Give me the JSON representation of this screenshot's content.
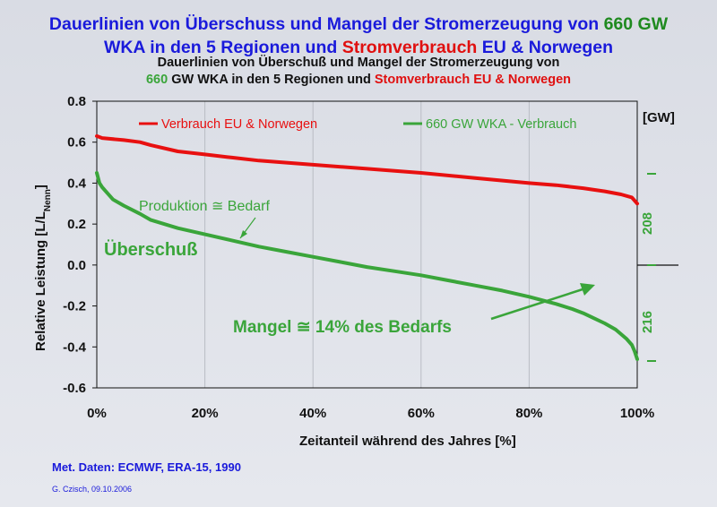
{
  "title": {
    "line1_part1": "Dauerlinien von Überschuss und Mangel der Stromerzeugung von",
    "line1_part2": "660 GW",
    "line2_part1": "WKA in den 5 Regionen und",
    "line2_part2": "Stromverbrauch",
    "line2_part3": "EU & Norwegen"
  },
  "subtitle": {
    "line1": "Dauerlinien von Überschuß und Mangel der Stromerzeugung von",
    "line2_part1": "660",
    "line2_part2": "GW WKA in den 5 Regionen und",
    "line2_part3": "Stomverbrauch EU & Norwegen"
  },
  "footer": {
    "source": "Met. Daten: ECMWF, ERA-15, 1990",
    "author": "G. Czisch, 09.10.2006"
  },
  "colors": {
    "red": "#e81010",
    "green": "#3aa53a",
    "blue": "#1a1adb",
    "text": "#111111"
  },
  "chart_data": {
    "type": "line",
    "ylabel": "Relative Leistung [L/LNenn]",
    "xlabel": "Zeitanteil während des Jahres [%]",
    "x_ticks": [
      "0%",
      "20%",
      "40%",
      "60%",
      "80%",
      "100%"
    ],
    "y_ticks": [
      "0.8",
      "0.6",
      "0.4",
      "0.2",
      "0.0",
      "-0.2",
      "-0.4",
      "-0.6"
    ],
    "xlim": [
      0,
      100
    ],
    "ylim": [
      -0.6,
      0.8
    ],
    "grid": "vertical",
    "legend_position": "top",
    "series": [
      {
        "name": "Verbrauch EU & Norwegen",
        "color": "#e81010",
        "x": [
          0,
          1,
          5,
          8,
          10,
          15,
          20,
          25,
          30,
          40,
          50,
          60,
          70,
          80,
          85,
          90,
          94,
          97,
          99,
          100
        ],
        "y": [
          0.63,
          0.62,
          0.61,
          0.6,
          0.585,
          0.555,
          0.54,
          0.525,
          0.51,
          0.49,
          0.47,
          0.45,
          0.425,
          0.4,
          0.39,
          0.375,
          0.36,
          0.345,
          0.33,
          0.3
        ]
      },
      {
        "name": "660 GW WKA - Verbrauch",
        "color": "#3aa53a",
        "x": [
          0,
          0.5,
          1,
          2,
          3,
          5,
          8,
          10,
          15,
          20,
          25,
          30,
          35,
          40,
          45,
          50,
          55,
          60,
          65,
          70,
          75,
          80,
          85,
          88,
          90,
          92,
          94,
          96,
          98,
          99,
          99.5,
          100
        ],
        "y": [
          0.45,
          0.4,
          0.38,
          0.35,
          0.32,
          0.29,
          0.25,
          0.22,
          0.18,
          0.15,
          0.12,
          0.09,
          0.065,
          0.04,
          0.015,
          -0.01,
          -0.03,
          -0.05,
          -0.075,
          -0.1,
          -0.125,
          -0.155,
          -0.19,
          -0.215,
          -0.235,
          -0.26,
          -0.285,
          -0.315,
          -0.36,
          -0.39,
          -0.42,
          -0.46
        ]
      }
    ],
    "annotations": {
      "produktion": "Produktion ≅ Bedarf",
      "ueberschuss": "Überschuß",
      "mangel": "Mangel ≅ 14% des Bedarfs",
      "gw_unit": "[GW]",
      "gw_surplus": "208",
      "gw_deficit": "216"
    }
  }
}
